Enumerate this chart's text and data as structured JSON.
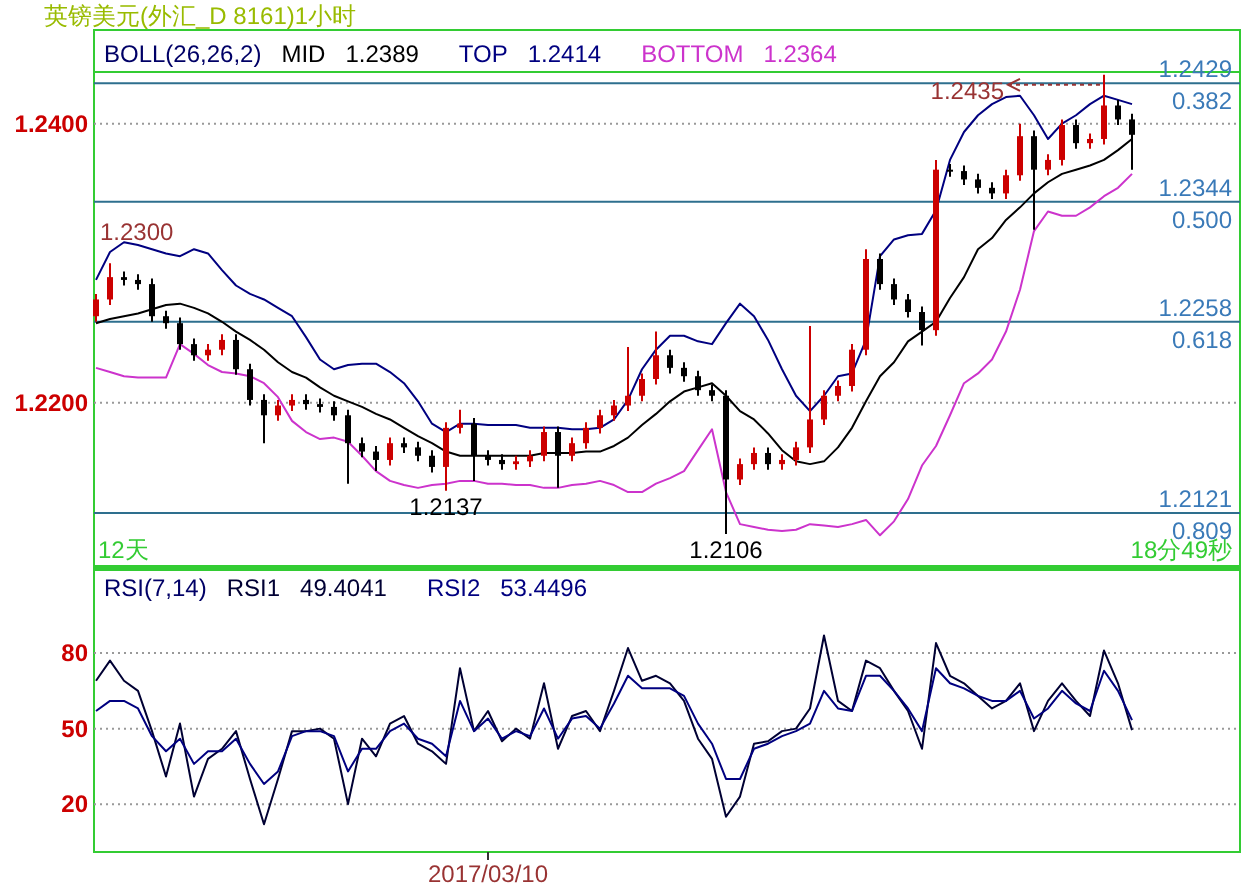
{
  "chart_data": [
    {
      "type": "candlestick",
      "title": "英镑美元(外汇_D 8161)1小时",
      "legend_title": "BOLL(26,26,2)",
      "legend": "top",
      "grid": "y",
      "tick_labels": "y",
      "ylim": [
        1.2083,
        1.2437
      ],
      "yticks": [
        {
          "value": 1.22,
          "label": "1.2200"
        },
        {
          "value": 1.24,
          "label": "1.2400"
        }
      ],
      "categories": [
        null,
        null,
        null,
        null,
        null,
        null,
        null,
        null,
        null,
        null,
        null,
        null,
        null,
        null,
        null,
        null,
        null,
        null,
        null,
        null,
        null,
        null,
        null,
        null,
        null,
        null,
        null,
        null,
        null,
        null,
        null,
        null,
        null,
        null,
        null,
        null,
        null,
        null,
        null,
        null,
        null,
        null,
        null,
        null,
        null,
        null,
        null,
        null,
        null,
        null,
        null,
        null,
        null,
        null,
        null,
        null,
        null,
        null,
        null,
        null,
        null,
        null,
        null,
        null,
        null,
        null,
        null,
        null,
        null,
        null,
        null,
        null,
        null,
        null,
        null
      ],
      "ohlc": [
        [
          1.2262,
          1.2278,
          1.2258,
          1.2274
        ],
        [
          1.2274,
          1.23,
          1.227,
          1.229
        ],
        [
          1.229,
          1.2294,
          1.2284,
          1.2288
        ],
        [
          1.2288,
          1.2292,
          1.2281,
          1.2285
        ],
        [
          1.2285,
          1.2289,
          1.2258,
          1.2262
        ],
        [
          1.2262,
          1.2266,
          1.2253,
          1.2257
        ],
        [
          1.2257,
          1.2261,
          1.2238,
          1.2242
        ],
        [
          1.2242,
          1.2246,
          1.223,
          1.2234
        ],
        [
          1.2234,
          1.2242,
          1.223,
          1.2238
        ],
        [
          1.2238,
          1.2249,
          1.2234,
          1.2245
        ],
        [
          1.2245,
          1.2249,
          1.222,
          1.2224
        ],
        [
          1.2224,
          1.2228,
          1.2198,
          1.2202
        ],
        [
          1.2202,
          1.2206,
          1.2171,
          1.2191
        ],
        [
          1.2191,
          1.2202,
          1.2187,
          1.2198
        ],
        [
          1.2198,
          1.2206,
          1.2194,
          1.2202
        ],
        [
          1.2202,
          1.2206,
          1.2195,
          1.2199
        ],
        [
          1.2199,
          1.2203,
          1.2193,
          1.2197
        ],
        [
          1.2197,
          1.2201,
          1.2187,
          1.2191
        ],
        [
          1.2191,
          1.2195,
          1.2142,
          1.2171
        ],
        [
          1.2171,
          1.2175,
          1.2161,
          1.2165
        ],
        [
          1.2165,
          1.2169,
          1.2151,
          1.2159
        ],
        [
          1.2159,
          1.2175,
          1.2155,
          1.2171
        ],
        [
          1.2171,
          1.2175,
          1.2164,
          1.2168
        ],
        [
          1.2168,
          1.2172,
          1.2158,
          1.2162
        ],
        [
          1.2162,
          1.2166,
          1.215,
          1.2154
        ],
        [
          1.2154,
          1.2186,
          1.2137,
          1.2182
        ],
        [
          1.2182,
          1.2195,
          1.2178,
          1.2185
        ],
        [
          1.2185,
          1.2189,
          1.2144,
          1.2162
        ],
        [
          1.2162,
          1.2166,
          1.2155,
          1.2159
        ],
        [
          1.2159,
          1.2163,
          1.2152,
          1.2156
        ],
        [
          1.2156,
          1.2162,
          1.2152,
          1.2158
        ],
        [
          1.2158,
          1.2166,
          1.2154,
          1.2162
        ],
        [
          1.2162,
          1.2183,
          1.2158,
          1.2179
        ],
        [
          1.2179,
          1.2183,
          1.2139,
          1.2162
        ],
        [
          1.2162,
          1.2175,
          1.2158,
          1.2171
        ],
        [
          1.2171,
          1.2186,
          1.2167,
          1.2182
        ],
        [
          1.2182,
          1.2195,
          1.2178,
          1.2191
        ],
        [
          1.2191,
          1.2202,
          1.2187,
          1.2198
        ],
        [
          1.2198,
          1.224,
          1.2194,
          1.2205
        ],
        [
          1.2205,
          1.2221,
          1.2201,
          1.2217
        ],
        [
          1.2217,
          1.2251,
          1.2213,
          1.2234
        ],
        [
          1.2234,
          1.2238,
          1.2221,
          1.2225
        ],
        [
          1.2225,
          1.2229,
          1.2215,
          1.2219
        ],
        [
          1.2219,
          1.2223,
          1.2205,
          1.2209
        ],
        [
          1.2209,
          1.2213,
          1.2201,
          1.2205
        ],
        [
          1.2205,
          1.2209,
          1.2106,
          1.2145
        ],
        [
          1.2145,
          1.216,
          1.2141,
          1.2156
        ],
        [
          1.2156,
          1.2168,
          1.2152,
          1.2164
        ],
        [
          1.2164,
          1.2168,
          1.2152,
          1.2156
        ],
        [
          1.2156,
          1.2163,
          1.2152,
          1.2159
        ],
        [
          1.2159,
          1.2172,
          1.2155,
          1.2168
        ],
        [
          1.2168,
          1.2255,
          1.2164,
          1.2188
        ],
        [
          1.2188,
          1.2209,
          1.2184,
          1.2205
        ],
        [
          1.2205,
          1.2216,
          1.2201,
          1.2212
        ],
        [
          1.2212,
          1.2242,
          1.2208,
          1.2238
        ],
        [
          1.2238,
          1.231,
          1.2234,
          1.2303
        ],
        [
          1.2303,
          1.2307,
          1.2281,
          1.2285
        ],
        [
          1.2285,
          1.2289,
          1.227,
          1.2274
        ],
        [
          1.2274,
          1.2278,
          1.2261,
          1.2265
        ],
        [
          1.2265,
          1.2269,
          1.2241,
          1.2252
        ],
        [
          1.2252,
          1.2374,
          1.2248,
          1.2367
        ],
        [
          1.2367,
          1.2371,
          1.2362,
          1.2366
        ],
        [
          1.2366,
          1.237,
          1.2356,
          1.236
        ],
        [
          1.236,
          1.2364,
          1.235,
          1.2354
        ],
        [
          1.2354,
          1.2358,
          1.2346,
          1.235
        ],
        [
          1.235,
          1.2367,
          1.2346,
          1.2363
        ],
        [
          1.2363,
          1.24,
          1.2359,
          1.2391
        ],
        [
          1.2391,
          1.2395,
          1.2324,
          1.2367
        ],
        [
          1.2367,
          1.2378,
          1.2363,
          1.2374
        ],
        [
          1.2374,
          1.2403,
          1.237,
          1.2399
        ],
        [
          1.2399,
          1.2403,
          1.2382,
          1.2386
        ],
        [
          1.2386,
          1.2393,
          1.2382,
          1.2389
        ],
        [
          1.2389,
          1.2435,
          1.2385,
          1.2413
        ],
        [
          1.2413,
          1.2417,
          1.2399,
          1.2403
        ],
        [
          1.2403,
          1.2407,
          1.2367,
          1.2392
        ]
      ],
      "series": [
        {
          "name": "MID",
          "type": "line",
          "color": "#000000",
          "values": [
            1.2257,
            1.226,
            1.2262,
            1.2264,
            1.2267,
            1.227,
            1.2271,
            1.2268,
            1.2264,
            1.2258,
            1.2251,
            1.2245,
            1.2238,
            1.2229,
            1.2222,
            1.2218,
            1.2211,
            1.2205,
            1.2201,
            1.2197,
            1.2192,
            1.2188,
            1.2182,
            1.2176,
            1.2171,
            1.2165,
            1.2162,
            1.2162,
            1.2162,
            1.2162,
            1.2162,
            1.2162,
            1.2164,
            1.2164,
            1.2164,
            1.2165,
            1.2165,
            1.2169,
            1.2175,
            1.2184,
            1.2192,
            1.2201,
            1.2208,
            1.2211,
            1.2214,
            1.2205,
            1.2194,
            1.2188,
            1.2178,
            1.2166,
            1.2158,
            1.2156,
            1.2158,
            1.2168,
            1.2182,
            1.2201,
            1.2219,
            1.2229,
            1.2244,
            1.2251,
            1.2258,
            1.2275,
            1.229,
            1.231,
            1.2318,
            1.2331,
            1.234,
            1.235,
            1.2358,
            1.2364,
            1.2367,
            1.237,
            1.2374,
            1.2381,
            1.2389
          ]
        },
        {
          "name": "TOP",
          "type": "line",
          "color": "#000080",
          "values": [
            1.2288,
            1.2308,
            1.2315,
            1.2313,
            1.231,
            1.2307,
            1.2305,
            1.231,
            1.2307,
            1.2295,
            1.2284,
            1.2278,
            1.2274,
            1.2268,
            1.2262,
            1.2247,
            1.2231,
            1.2224,
            1.2227,
            1.2228,
            1.2228,
            1.2222,
            1.2214,
            1.2201,
            1.2185,
            1.2179,
            1.2185,
            1.2185,
            1.2184,
            1.2184,
            1.2184,
            1.2182,
            1.2182,
            1.2182,
            1.2181,
            1.2181,
            1.2182,
            1.2188,
            1.2202,
            1.2224,
            1.2238,
            1.2248,
            1.2248,
            1.2244,
            1.2242,
            1.2257,
            1.2271,
            1.2262,
            1.2245,
            1.2224,
            1.2205,
            1.2194,
            1.2205,
            1.2219,
            1.2221,
            1.2245,
            1.2305,
            1.2317,
            1.232,
            1.2321,
            1.2338,
            1.2374,
            1.2394,
            1.2406,
            1.2414,
            1.2419,
            1.242,
            1.2406,
            1.2389,
            1.24,
            1.2406,
            1.2414,
            1.242,
            1.2417,
            1.2414
          ]
        },
        {
          "name": "BOTTOM",
          "type": "line",
          "color": "#cc33cc",
          "values": [
            1.2225,
            1.2222,
            1.2219,
            1.2218,
            1.2218,
            1.2218,
            1.2242,
            1.2235,
            1.2227,
            1.2222,
            1.2221,
            1.2219,
            1.2214,
            1.2204,
            1.2187,
            1.2179,
            1.2174,
            1.2175,
            1.2172,
            1.2162,
            1.2151,
            1.2144,
            1.2141,
            1.2139,
            1.2141,
            1.2142,
            1.2144,
            1.2144,
            1.2142,
            1.2142,
            1.2141,
            1.2141,
            1.2139,
            1.2139,
            1.2141,
            1.2142,
            1.2144,
            1.2141,
            1.2136,
            1.2136,
            1.2142,
            1.2146,
            1.2151,
            1.2166,
            1.2181,
            1.2136,
            1.2113,
            1.2111,
            1.2109,
            1.2108,
            1.2109,
            1.2113,
            1.2112,
            1.2111,
            1.2113,
            1.2116,
            1.2105,
            1.2115,
            1.2131,
            1.2155,
            1.2169,
            1.2191,
            1.2214,
            1.2221,
            1.2231,
            1.2251,
            1.2281,
            1.2323,
            1.2337,
            1.2334,
            1.2334,
            1.234,
            1.2348,
            1.2354,
            1.2364
          ]
        }
      ],
      "ref_lines": [
        {
          "axis": "y",
          "value": 1.2429,
          "label": "1.2429",
          "color": "#2e6f8e"
        },
        {
          "axis": "y",
          "value": 1.2344,
          "label": "1.2344",
          "color": "#2e6f8e"
        },
        {
          "axis": "y",
          "value": 1.2258,
          "label": "1.2258",
          "color": "#2e6f8e"
        },
        {
          "axis": "y",
          "value": 1.2121,
          "label": "1.2121",
          "color": "#2e6f8e"
        }
      ],
      "annotations": [
        "1.2389",
        "1.2414",
        "1.2364",
        "12天",
        "18分49秒",
        "1.2300",
        {
          "text": "0.382",
          "y": 1.2429
        },
        {
          "text": "0.500",
          "y": 1.2344
        },
        {
          "text": "0.618",
          "y": 1.2258
        },
        {
          "text": "0.809",
          "y": 1.2121
        },
        {
          "text": "1.2137",
          "y": 1.2137
        },
        {
          "text": "1.2106",
          "y": 1.2106
        },
        {
          "text": "1.2435",
          "y": 1.2435
        }
      ]
    },
    {
      "type": "line",
      "legend_title": "RSI(7,14)",
      "legend": "top",
      "grid": "y",
      "ylim": [
        1,
        113
      ],
      "yticks": [
        20,
        50,
        80
      ],
      "categories": [
        null,
        null,
        null,
        null,
        null,
        null,
        null,
        null,
        null,
        null,
        null,
        null,
        null,
        null,
        null,
        null,
        null,
        null,
        null,
        null,
        null,
        null,
        null,
        null,
        null,
        null,
        null,
        null,
        "2017/03/10",
        null,
        null,
        null,
        null,
        null,
        null,
        null,
        null,
        null,
        null,
        null,
        null,
        null,
        null,
        null,
        null,
        null,
        null,
        null,
        null,
        null,
        null,
        null,
        null,
        null,
        null,
        null,
        null,
        null,
        null,
        null,
        null,
        null,
        null,
        null,
        null,
        null,
        null,
        null,
        null,
        null,
        null,
        null,
        null,
        null,
        null
      ],
      "series": [
        {
          "name": "RSI1",
          "color": "#000033",
          "values": [
            69,
            77,
            69,
            65,
            49,
            31,
            52,
            23,
            38,
            42,
            49,
            30,
            12,
            30,
            49,
            49,
            50,
            46,
            20,
            46,
            39,
            52,
            55,
            44,
            41,
            36,
            74,
            49,
            57,
            45,
            50,
            46,
            68,
            42,
            55,
            57,
            49,
            65,
            82,
            69,
            71,
            68,
            61,
            46,
            38,
            15,
            23,
            44,
            45,
            49,
            50,
            58,
            87,
            61,
            57,
            77,
            74,
            65,
            57,
            42,
            84,
            71,
            68,
            63,
            58,
            61,
            68,
            49,
            61,
            68,
            61,
            55,
            81,
            68,
            49.4
          ]
        },
        {
          "name": "RSI2",
          "color": "#000080",
          "values": [
            57,
            61,
            61,
            58,
            47,
            41,
            46,
            36,
            41,
            41,
            46,
            36,
            28,
            33,
            47,
            49,
            49,
            47,
            33,
            42,
            42,
            49,
            52,
            46,
            44,
            39,
            61,
            49,
            54,
            46,
            49,
            47,
            58,
            46,
            54,
            55,
            50,
            60,
            71,
            66,
            66,
            66,
            63,
            52,
            44,
            30,
            30,
            42,
            44,
            47,
            49,
            52,
            65,
            58,
            57,
            71,
            71,
            65,
            58,
            49,
            74,
            68,
            66,
            63,
            61,
            61,
            65,
            54,
            58,
            65,
            60,
            57,
            73,
            65,
            53.4
          ]
        }
      ],
      "annotations": [
        "49.4041",
        "53.4496"
      ]
    }
  ]
}
